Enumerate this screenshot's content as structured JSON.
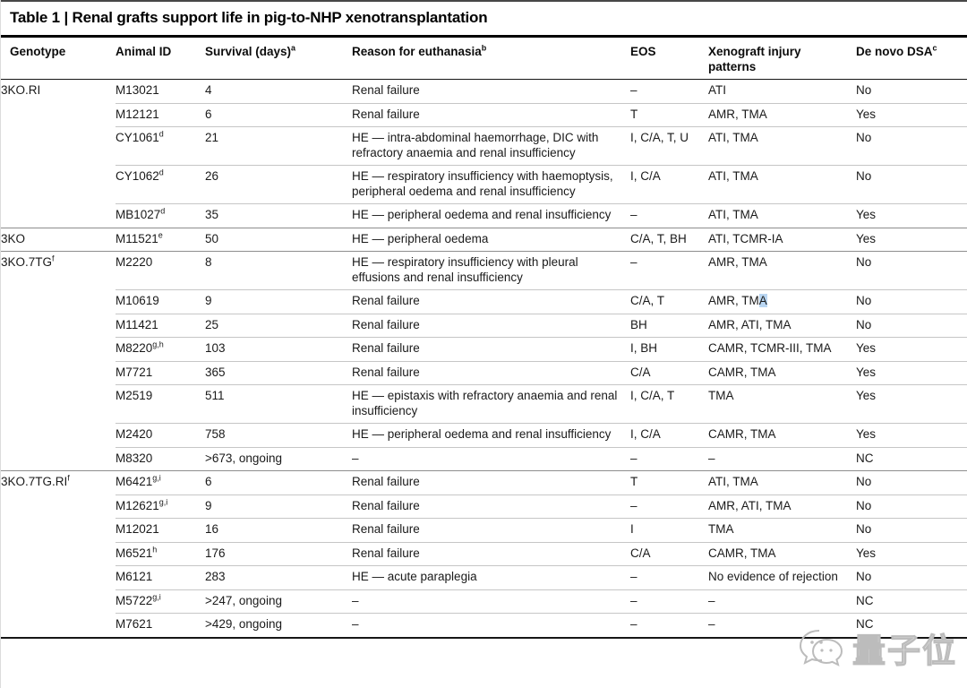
{
  "title": "Table 1 | Renal grafts support life in pig-to-NHP xenotransplantation",
  "columns": [
    {
      "label": "Genotype",
      "sup": ""
    },
    {
      "label": "Animal ID",
      "sup": ""
    },
    {
      "label": "Survival (days)",
      "sup": "a"
    },
    {
      "label": "Reason for euthanasia",
      "sup": "b"
    },
    {
      "label": "EOS",
      "sup": ""
    },
    {
      "label": "Xenograft injury patterns",
      "sup": ""
    },
    {
      "label": "De novo DSA",
      "sup": "c"
    }
  ],
  "groups": [
    {
      "genotype": "3KO.RI",
      "genotype_sup": "",
      "rows": [
        {
          "id": "M13021",
          "id_sup": "",
          "survival": "4",
          "reason": "Renal failure",
          "eos": "–",
          "injury": "ATI",
          "injury_hl": "",
          "dsa": "No"
        },
        {
          "id": "M12121",
          "id_sup": "",
          "survival": "6",
          "reason": "Renal failure",
          "eos": "T",
          "injury": "AMR, TMA",
          "injury_hl": "",
          "dsa": "Yes"
        },
        {
          "id": "CY1061",
          "id_sup": "d",
          "survival": "21",
          "reason": "HE — intra-abdominal haemorrhage, DIC with refractory anaemia and renal insufficiency",
          "eos": "I, C/A, T, U",
          "injury": "ATI, TMA",
          "injury_hl": "",
          "dsa": "No"
        },
        {
          "id": "CY1062",
          "id_sup": "d",
          "survival": "26",
          "reason": "HE — respiratory insufficiency with haemoptysis, peripheral oedema and renal insufficiency",
          "eos": "I, C/A",
          "injury": "ATI, TMA",
          "injury_hl": "",
          "dsa": "No"
        },
        {
          "id": "MB1027",
          "id_sup": "d",
          "survival": "35",
          "reason": "HE — peripheral oedema and renal insufficiency",
          "eos": "–",
          "injury": "ATI, TMA",
          "injury_hl": "",
          "dsa": "Yes"
        }
      ]
    },
    {
      "genotype": "3KO",
      "genotype_sup": "",
      "rows": [
        {
          "id": "M11521",
          "id_sup": "e",
          "survival": "50",
          "reason": "HE — peripheral oedema",
          "eos": "C/A, T, BH",
          "injury": "ATI, TCMR-IA",
          "injury_hl": "",
          "dsa": "Yes"
        }
      ]
    },
    {
      "genotype": "3KO.7TG",
      "genotype_sup": "f",
      "rows": [
        {
          "id": "M2220",
          "id_sup": "",
          "survival": "8",
          "reason": "HE — respiratory insufficiency with pleural effusions and renal insufficiency",
          "eos": "–",
          "injury": "AMR, TMA",
          "injury_hl": "",
          "dsa": "No"
        },
        {
          "id": "M10619",
          "id_sup": "",
          "survival": "9",
          "reason": "Renal failure",
          "eos": "C/A, T",
          "injury": "AMR, TM",
          "injury_hl": "A",
          "dsa": "No"
        },
        {
          "id": "M11421",
          "id_sup": "",
          "survival": "25",
          "reason": "Renal failure",
          "eos": "BH",
          "injury": "AMR, ATI, TMA",
          "injury_hl": "",
          "dsa": "No"
        },
        {
          "id": "M8220",
          "id_sup": "g,h",
          "survival": "103",
          "reason": "Renal failure",
          "eos": "I, BH",
          "injury": "CAMR, TCMR-III, TMA",
          "injury_hl": "",
          "dsa": "Yes"
        },
        {
          "id": "M7721",
          "id_sup": "",
          "survival": "365",
          "reason": "Renal failure",
          "eos": "C/A",
          "injury": "CAMR, TMA",
          "injury_hl": "",
          "dsa": "Yes"
        },
        {
          "id": "M2519",
          "id_sup": "",
          "survival": "511",
          "reason": "HE — epistaxis with refractory anaemia and renal insufficiency",
          "eos": "I, C/A, T",
          "injury": "TMA",
          "injury_hl": "",
          "dsa": "Yes"
        },
        {
          "id": "M2420",
          "id_sup": "",
          "survival": "758",
          "reason": "HE — peripheral oedema and renal insufficiency",
          "eos": "I, C/A",
          "injury": "CAMR, TMA",
          "injury_hl": "",
          "dsa": "Yes"
        },
        {
          "id": "M8320",
          "id_sup": "",
          "survival": ">673, ongoing",
          "reason": "–",
          "eos": "–",
          "injury": "–",
          "injury_hl": "",
          "dsa": "NC"
        }
      ]
    },
    {
      "genotype": "3KO.7TG.RI",
      "genotype_sup": "f",
      "rows": [
        {
          "id": "M6421",
          "id_sup": "g,i",
          "survival": "6",
          "reason": "Renal failure",
          "eos": "T",
          "injury": "ATI, TMA",
          "injury_hl": "",
          "dsa": "No"
        },
        {
          "id": "M12621",
          "id_sup": "g,i",
          "survival": "9",
          "reason": "Renal failure",
          "eos": "–",
          "injury": "AMR, ATI, TMA",
          "injury_hl": "",
          "dsa": "No"
        },
        {
          "id": "M12021",
          "id_sup": "",
          "survival": "16",
          "reason": "Renal failure",
          "eos": "I",
          "injury": "TMA",
          "injury_hl": "",
          "dsa": "No"
        },
        {
          "id": "M6521",
          "id_sup": "h",
          "survival": "176",
          "reason": "Renal failure",
          "eos": "C/A",
          "injury": "CAMR, TMA",
          "injury_hl": "",
          "dsa": "Yes"
        },
        {
          "id": "M6121",
          "id_sup": "",
          "survival": "283",
          "reason": "HE — acute paraplegia",
          "eos": "–",
          "injury": "No evidence of rejection",
          "injury_hl": "",
          "dsa": "No"
        },
        {
          "id": "M5722",
          "id_sup": "g,i",
          "survival": ">247, ongoing",
          "reason": "–",
          "eos": "–",
          "injury": "–",
          "injury_hl": "",
          "dsa": "NC"
        },
        {
          "id": "M7621",
          "id_sup": "",
          "survival": ">429, ongoing",
          "reason": "–",
          "eos": "–",
          "injury": "–",
          "injury_hl": "",
          "dsa": "NC"
        }
      ]
    }
  ],
  "watermark": {
    "text": "量子位",
    "icon": "wechat-bubbles-icon"
  },
  "colors": {
    "rule_dark": "#000000",
    "rule_group": "#8d8d8d",
    "rule_row": "#c6c6c6",
    "highlight": "#b9d6f2",
    "watermark": "#bcbcbc"
  }
}
